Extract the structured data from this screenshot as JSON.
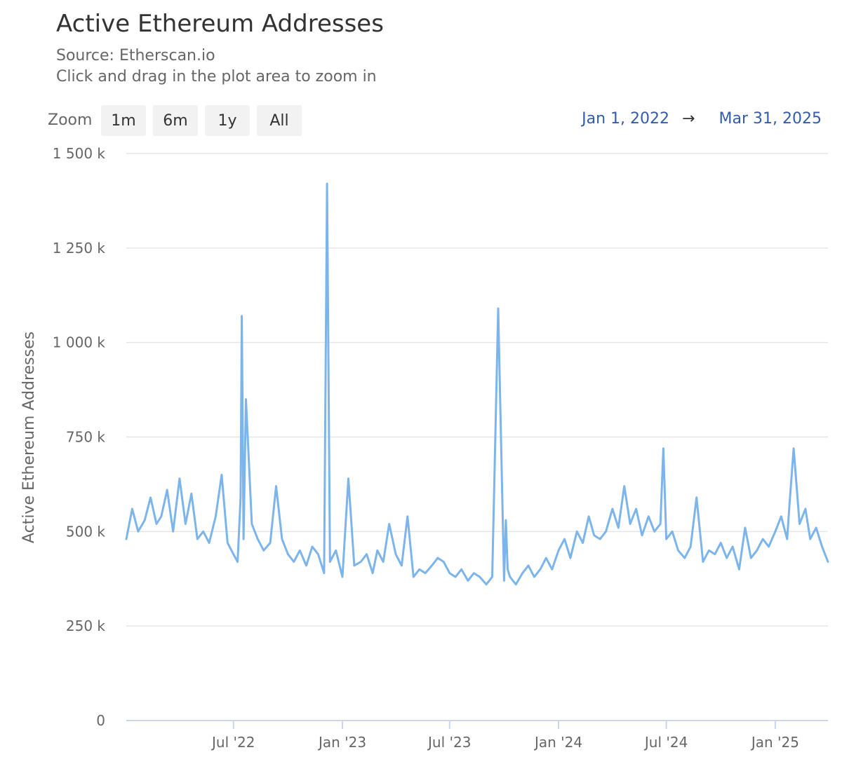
{
  "header": {
    "title": "Active Ethereum Addresses",
    "source": "Source: Etherscan.io",
    "hint": "Click and drag in the plot area to zoom in"
  },
  "range_selector": {
    "label": "Zoom",
    "buttons": [
      "1m",
      "6m",
      "1y",
      "All"
    ],
    "from": "Jan 1, 2022",
    "arrow": "→",
    "to": "Mar 31, 2025"
  },
  "colors": {
    "series": "#7cb5ec",
    "grid": "#e6e6e6",
    "axis": "#ccd6eb",
    "range_text": "#335cad"
  },
  "chart_data": {
    "type": "line",
    "title": "Active Ethereum Addresses",
    "ylabel": "Active Ethereum Addresses",
    "xlabel": "",
    "ylim": [
      0,
      1500000
    ],
    "xlim": [
      "2022-01-01",
      "2025-03-31"
    ],
    "y_ticks": [
      0,
      250000,
      500000,
      750000,
      1000000,
      1250000,
      1500000
    ],
    "y_tick_labels": [
      "0",
      "250 k",
      "500 k",
      "750 k",
      "1 000 k",
      "1 250 k",
      "1 500 k"
    ],
    "x_ticks": [
      "2022-07-01",
      "2023-01-01",
      "2023-07-01",
      "2024-01-01",
      "2024-07-01",
      "2025-01-01"
    ],
    "x_tick_labels": [
      "Jul '22",
      "Jan '23",
      "Jul '23",
      "Jan '24",
      "Jul '24",
      "Jan '25"
    ],
    "grid": true,
    "legend": "none",
    "series": [
      {
        "x": [
          "2022-01-01",
          "2022-01-11",
          "2022-01-21",
          "2022-02-01",
          "2022-02-11",
          "2022-02-21",
          "2022-03-01",
          "2022-03-11",
          "2022-03-21",
          "2022-04-01",
          "2022-04-11",
          "2022-04-21",
          "2022-05-01",
          "2022-05-11",
          "2022-05-21",
          "2022-06-01",
          "2022-06-11",
          "2022-06-21",
          "2022-07-01",
          "2022-07-08",
          "2022-07-13",
          "2022-07-15",
          "2022-07-18",
          "2022-07-22",
          "2022-08-01",
          "2022-08-11",
          "2022-08-21",
          "2022-09-01",
          "2022-09-11",
          "2022-09-21",
          "2022-10-01",
          "2022-10-11",
          "2022-10-21",
          "2022-11-01",
          "2022-11-11",
          "2022-11-21",
          "2022-12-01",
          "2022-12-06",
          "2022-12-11",
          "2022-12-21",
          "2023-01-01",
          "2023-01-11",
          "2023-01-21",
          "2023-02-01",
          "2023-02-11",
          "2023-02-21",
          "2023-03-01",
          "2023-03-11",
          "2023-03-21",
          "2023-04-01",
          "2023-04-11",
          "2023-04-21",
          "2023-05-01",
          "2023-05-11",
          "2023-05-21",
          "2023-06-01",
          "2023-06-11",
          "2023-06-21",
          "2023-07-01",
          "2023-07-11",
          "2023-07-21",
          "2023-08-01",
          "2023-08-11",
          "2023-08-21",
          "2023-09-01",
          "2023-09-11",
          "2023-09-21",
          "2023-10-01",
          "2023-10-04",
          "2023-10-07",
          "2023-10-11",
          "2023-10-21",
          "2023-11-01",
          "2023-11-11",
          "2023-11-21",
          "2023-12-01",
          "2023-12-11",
          "2023-12-21",
          "2024-01-01",
          "2024-01-11",
          "2024-01-21",
          "2024-02-01",
          "2024-02-11",
          "2024-02-21",
          "2024-03-01",
          "2024-03-11",
          "2024-03-21",
          "2024-04-01",
          "2024-04-11",
          "2024-04-21",
          "2024-05-01",
          "2024-05-11",
          "2024-05-21",
          "2024-06-01",
          "2024-06-11",
          "2024-06-21",
          "2024-06-26",
          "2024-07-01",
          "2024-07-11",
          "2024-07-21",
          "2024-08-01",
          "2024-08-11",
          "2024-08-21",
          "2024-09-01",
          "2024-09-11",
          "2024-09-21",
          "2024-10-01",
          "2024-10-11",
          "2024-10-21",
          "2024-11-01",
          "2024-11-11",
          "2024-11-21",
          "2024-12-01",
          "2024-12-11",
          "2024-12-21",
          "2025-01-01",
          "2025-01-11",
          "2025-01-21",
          "2025-01-25",
          "2025-02-01",
          "2025-02-11",
          "2025-02-21",
          "2025-03-01",
          "2025-03-11",
          "2025-03-21",
          "2025-03-31"
        ],
        "values": [
          480000,
          560000,
          500000,
          530000,
          590000,
          520000,
          540000,
          610000,
          500000,
          640000,
          520000,
          600000,
          480000,
          500000,
          470000,
          540000,
          650000,
          470000,
          440000,
          420000,
          590000,
          1070000,
          480000,
          850000,
          520000,
          480000,
          450000,
          470000,
          620000,
          480000,
          440000,
          420000,
          450000,
          410000,
          460000,
          440000,
          390000,
          1420000,
          420000,
          450000,
          380000,
          640000,
          410000,
          420000,
          440000,
          390000,
          450000,
          420000,
          520000,
          440000,
          410000,
          540000,
          380000,
          400000,
          390000,
          410000,
          430000,
          420000,
          390000,
          380000,
          400000,
          370000,
          390000,
          380000,
          360000,
          380000,
          1090000,
          370000,
          530000,
          400000,
          380000,
          360000,
          390000,
          410000,
          380000,
          400000,
          430000,
          400000,
          450000,
          480000,
          430000,
          500000,
          470000,
          540000,
          490000,
          480000,
          500000,
          560000,
          510000,
          620000,
          520000,
          560000,
          490000,
          540000,
          500000,
          520000,
          720000,
          480000,
          500000,
          450000,
          430000,
          460000,
          590000,
          420000,
          450000,
          440000,
          470000,
          430000,
          460000,
          400000,
          510000,
          430000,
          450000,
          480000,
          460000,
          500000,
          540000,
          480000,
          570000,
          720000,
          520000,
          560000,
          480000,
          510000,
          460000,
          420000
        ]
      }
    ]
  }
}
